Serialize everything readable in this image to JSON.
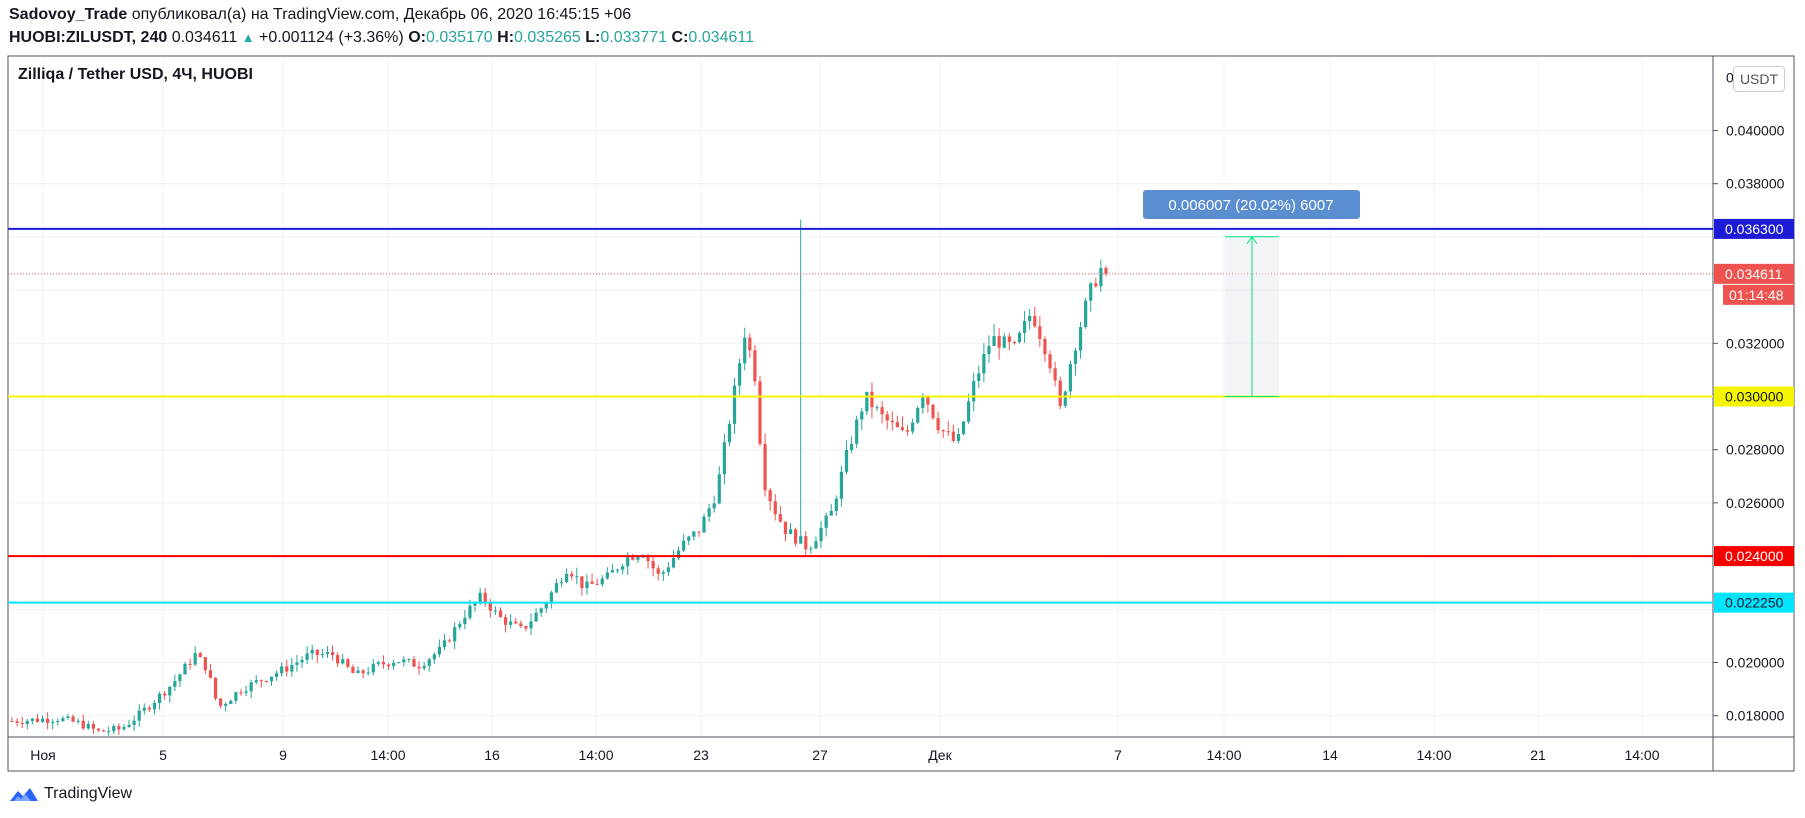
{
  "header": {
    "author": "Sadovoy_Trade",
    "published_text": "опубликовал(а) на TradingView.com, Декабрь 06, 2020 16:45:15 +06",
    "symbol": "HUOBI:ZILUSDT, 240",
    "last": "0.034611",
    "change": "+0.001124 (+3.36%)",
    "o_label": "O:",
    "o_value": "0.035170",
    "h_label": "H:",
    "h_value": "0.035265",
    "l_label": "L:",
    "l_value": "0.033771",
    "c_label": "C:",
    "c_value": "0.034611"
  },
  "legend_title": "Zilliqa / Tether USD, 4Ч, HUOBI",
  "currency_button": "USDT",
  "brand": "TradingView",
  "colors": {
    "up": "#26a69a",
    "down": "#ef5350",
    "grid": "#eef1f5",
    "blue_line": "#1c1cd6",
    "yellow_line": "#f5f500",
    "red_line": "#f70000",
    "cyan_line": "#00e5ff"
  },
  "chart_data": {
    "type": "candlestick",
    "title": "Zilliqa / Tether USD, 4Ч, HUOBI",
    "ylim": [
      0.0172,
      0.0428
    ],
    "y_ticks": [
      "0.018000",
      "0.020000",
      "0.026000",
      "0.028000",
      "0.032000",
      "0.038000",
      "0.040000"
    ],
    "x_ticks": [
      "Ноя",
      "5",
      "9",
      "14:00",
      "16",
      "14:00",
      "23",
      "27",
      "Дек",
      "7",
      "14:00",
      "14",
      "14:00",
      "21",
      "14:00"
    ],
    "x_ticks_top_clipped": "0",
    "horizontal_levels": [
      {
        "name": "blue",
        "value": 0.0363,
        "label": "0.036300",
        "color": "#1c1cd6",
        "text_color": "#ffffff"
      },
      {
        "name": "yellow",
        "value": 0.03,
        "label": "0.030000",
        "color": "#f5f500",
        "text_color": "#131722"
      },
      {
        "name": "red",
        "value": 0.024,
        "label": "0.024000",
        "color": "#f70000",
        "text_color": "#ffffff"
      },
      {
        "name": "cyan",
        "value": 0.02225,
        "label": "0.022250",
        "color": "#00e5ff",
        "text_color": "#131722"
      }
    ],
    "last_price": {
      "value": 0.034611,
      "label": "0.034611",
      "countdown": "01:14:48"
    },
    "measure": {
      "from": 0.03,
      "to": 0.036007,
      "label": "0.006007 (20.02%) 6007"
    },
    "candle_count": 216,
    "price_path": [
      [
        0,
        0.0178
      ],
      [
        16,
        0.0179
      ],
      [
        24,
        0.0177
      ],
      [
        30,
        0.0174
      ],
      [
        38,
        0.0175
      ],
      [
        44,
        0.018
      ],
      [
        56,
        0.0192
      ],
      [
        64,
        0.0203
      ],
      [
        68,
        0.0198
      ],
      [
        72,
        0.0183
      ],
      [
        80,
        0.019
      ],
      [
        88,
        0.0194
      ],
      [
        96,
        0.0198
      ],
      [
        104,
        0.0203
      ],
      [
        112,
        0.0203
      ],
      [
        120,
        0.0195
      ],
      [
        128,
        0.0199
      ],
      [
        134,
        0.0201
      ],
      [
        142,
        0.0199
      ],
      [
        150,
        0.0205
      ],
      [
        158,
        0.0218
      ],
      [
        164,
        0.0225
      ],
      [
        170,
        0.0217
      ],
      [
        178,
        0.0212
      ],
      [
        186,
        0.0222
      ],
      [
        194,
        0.0236
      ],
      [
        200,
        0.0228
      ],
      [
        208,
        0.0232
      ],
      [
        214,
        0.0239
      ],
      [
        220,
        0.0242
      ],
      [
        226,
        0.0232
      ],
      [
        234,
        0.0244
      ],
      [
        240,
        0.025
      ],
      [
        246,
        0.0264
      ],
      [
        252,
        0.03
      ],
      [
        256,
        0.0325
      ],
      [
        260,
        0.0305
      ],
      [
        262,
        0.027
      ],
      [
        266,
        0.0258
      ],
      [
        270,
        0.025
      ],
      [
        278,
        0.0243
      ],
      [
        286,
        0.0256
      ],
      [
        292,
        0.028
      ],
      [
        298,
        0.03
      ],
      [
        304,
        0.0292
      ],
      [
        312,
        0.0285
      ],
      [
        318,
        0.0302
      ],
      [
        324,
        0.0288
      ],
      [
        330,
        0.0282
      ],
      [
        336,
        0.0305
      ],
      [
        342,
        0.0322
      ],
      [
        350,
        0.0318
      ],
      [
        356,
        0.0332
      ],
      [
        362,
        0.0315
      ],
      [
        366,
        0.0295
      ],
      [
        370,
        0.0315
      ],
      [
        376,
        0.0338
      ],
      [
        380,
        0.0348
      ],
      [
        382,
        0.0346
      ]
    ]
  }
}
